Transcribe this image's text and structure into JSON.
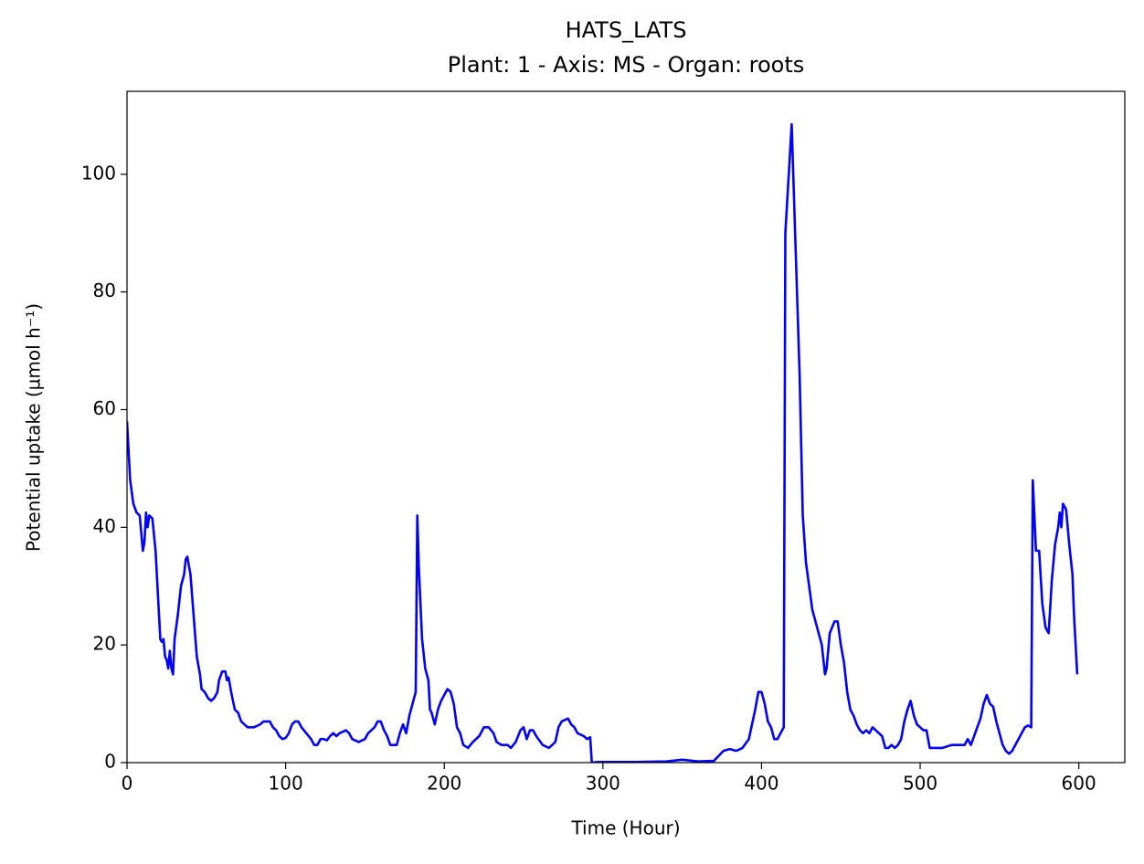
{
  "chart_data": {
    "type": "line",
    "title": "HATS_LATS",
    "subtitle": "Plant: 1 - Axis: MS - Organ: roots",
    "x_label": "Time (Hour)",
    "y_label": "Potential uptake (µmol h⁻¹)",
    "xlim": [
      0,
      629
    ],
    "ylim": [
      0,
      114.1
    ],
    "xticks": [
      0,
      100,
      200,
      300,
      400,
      500,
      600
    ],
    "yticks": [
      0,
      20,
      40,
      60,
      80,
      100
    ],
    "color": "#0000ff",
    "x": [
      0,
      2,
      4,
      6,
      8,
      10,
      11,
      12,
      13,
      14,
      16,
      18,
      20,
      21,
      22,
      23,
      24,
      25,
      26,
      27,
      28,
      29,
      30,
      32,
      34,
      36,
      37,
      38,
      40,
      42,
      44,
      46,
      47,
      49,
      51,
      53,
      55,
      57,
      58,
      60,
      62,
      63,
      64,
      66,
      68,
      70,
      72,
      76,
      80,
      84,
      86,
      90,
      92,
      94,
      96,
      98,
      100,
      102,
      104,
      106,
      108,
      110,
      113,
      116,
      118,
      120,
      122,
      124,
      126,
      128,
      130,
      132,
      134,
      138,
      140,
      142,
      146,
      150,
      152,
      154,
      156,
      158,
      160,
      162,
      164,
      166,
      170,
      172,
      174,
      176,
      178,
      180,
      182,
      183,
      184,
      186,
      188,
      190,
      191,
      192,
      194,
      196,
      198,
      200,
      202,
      204,
      206,
      208,
      210,
      212,
      215,
      218,
      222,
      225,
      228,
      231,
      233,
      236,
      240,
      242,
      245,
      248,
      250,
      252,
      254,
      256,
      258,
      262,
      266,
      270,
      272,
      274,
      278,
      280,
      282,
      284,
      288,
      290,
      292,
      293,
      296,
      320,
      340,
      350,
      360,
      370,
      376,
      380,
      384,
      388,
      392,
      396,
      398,
      400,
      402,
      404,
      406,
      408,
      410,
      412,
      414,
      415,
      419,
      424,
      426,
      428,
      432,
      436,
      438,
      440,
      441,
      443,
      446,
      448,
      450,
      452,
      454,
      456,
      458,
      460,
      462,
      464,
      466,
      468,
      470,
      474,
      476,
      478,
      480,
      482,
      484,
      486,
      488,
      490,
      492,
      494,
      496,
      498,
      500,
      502,
      504,
      506,
      510,
      514,
      520,
      524,
      528,
      530,
      532,
      536,
      538,
      540,
      542,
      544,
      546,
      548,
      550,
      552,
      554,
      556,
      558,
      560,
      564,
      566,
      568,
      570,
      571,
      573,
      575,
      577,
      579,
      581,
      583,
      585,
      587,
      588,
      589,
      590,
      592,
      594,
      596,
      597,
      598,
      599
    ],
    "values": [
      58,
      48,
      44,
      42.5,
      42,
      36,
      37.5,
      42.5,
      40,
      42,
      41.5,
      36,
      26,
      21,
      20.5,
      21,
      18,
      17.5,
      16,
      19,
      16,
      15,
      21,
      25,
      30,
      32,
      34.5,
      35,
      32,
      25,
      18,
      15,
      12.5,
      12,
      11,
      10.5,
      11,
      12,
      14,
      15.5,
      15.5,
      14,
      14.5,
      11.5,
      9,
      8.5,
      7,
      6,
      6,
      6.5,
      7,
      7,
      6,
      5.5,
      4.5,
      4,
      4.2,
      5,
      6.5,
      7,
      7,
      6,
      5,
      4,
      3,
      3,
      4,
      4,
      3.8,
      4.5,
      5,
      4.5,
      5,
      5.5,
      5,
      4,
      3.5,
      4,
      5,
      5.5,
      6,
      7,
      7,
      5.5,
      4.5,
      3,
      3,
      5,
      6.5,
      5,
      8,
      10,
      12,
      42,
      33,
      21,
      16,
      14,
      9,
      8.5,
      6.5,
      9,
      10.5,
      11.5,
      12.5,
      12,
      10,
      6,
      5,
      3,
      2.5,
      3.5,
      4.5,
      6,
      6,
      5,
      3.5,
      3,
      3,
      2.5,
      3.5,
      5.5,
      6,
      4,
      5.5,
      5.5,
      4.5,
      3,
      2.5,
      3.5,
      6,
      7,
      7.5,
      6.5,
      6,
      5,
      4.5,
      4,
      4.3,
      0,
      0.1,
      0.1,
      0.2,
      0.5,
      0.2,
      0.3,
      2,
      2.3,
      2,
      2.5,
      4,
      9,
      12,
      12,
      10,
      7,
      6,
      4,
      4,
      5,
      6,
      90,
      108.5,
      66,
      42,
      34,
      26,
      22,
      20,
      15,
      16,
      22,
      24,
      24,
      20,
      17,
      12,
      9,
      8,
      6.5,
      5.5,
      5,
      5.5,
      5,
      6,
      5,
      4.5,
      2.5,
      2.5,
      3,
      2.5,
      3,
      4,
      7,
      9,
      10.5,
      8,
      6.5,
      6,
      5.5,
      5.5,
      2.5,
      2.5,
      2.5,
      3,
      3,
      3,
      4,
      3,
      6,
      7.5,
      10,
      11.5,
      10,
      9.5,
      7,
      5,
      3,
      2,
      1.5,
      2,
      3,
      5,
      6,
      6.3,
      6,
      48,
      36,
      36,
      27,
      23,
      22,
      31,
      37,
      40,
      42.5,
      40,
      44,
      43,
      37,
      32,
      25,
      20,
      15
    ]
  }
}
